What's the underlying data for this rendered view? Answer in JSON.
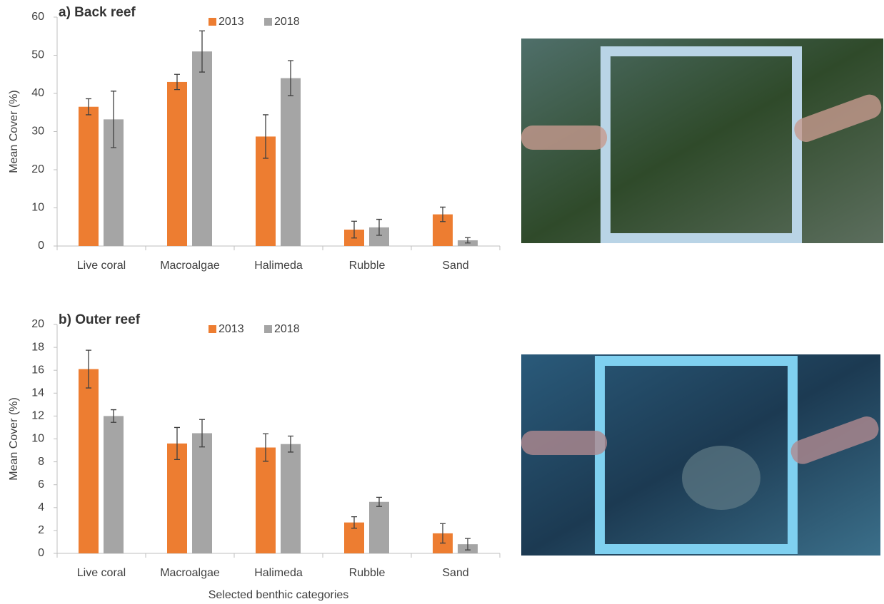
{
  "chart_data": [
    {
      "type": "bar",
      "title": "a) Back reef",
      "y_label": "Mean Cover (%)",
      "categories": [
        "Live coral",
        "Macroalgae",
        "Halimeda",
        "Rubble",
        "Sand"
      ],
      "series": [
        {
          "name": "2013",
          "color": "#ed7d31",
          "values": [
            36.5,
            43,
            28.7,
            4.3,
            8.3
          ],
          "errors": [
            2.1,
            2,
            5.7,
            2.2,
            1.9
          ]
        },
        {
          "name": "2018",
          "color": "#a5a5a5",
          "values": [
            33.2,
            51,
            44,
            4.9,
            1.5
          ],
          "errors": [
            7.4,
            5.4,
            4.6,
            2.1,
            0.7
          ]
        }
      ],
      "ylim": [
        0,
        60
      ],
      "yticks": [
        0,
        10,
        20,
        30,
        40,
        50,
        60
      ],
      "grid": false
    },
    {
      "type": "bar",
      "title": "b) Outer reef",
      "y_label": "Mean Cover (%)",
      "x_label": "Selected benthic categories",
      "categories": [
        "Live coral",
        "Macroalgae",
        "Halimeda",
        "Rubble",
        "Sand"
      ],
      "series": [
        {
          "name": "2013",
          "color": "#ed7d31",
          "values": [
            16.1,
            9.6,
            9.25,
            2.7,
            1.75
          ],
          "errors": [
            1.65,
            1.4,
            1.2,
            0.5,
            0.85
          ]
        },
        {
          "name": "2018",
          "color": "#a5a5a5",
          "values": [
            12,
            10.5,
            9.55,
            4.5,
            0.8
          ],
          "errors": [
            0.55,
            1.2,
            0.7,
            0.4,
            0.5
          ]
        }
      ],
      "ylim": [
        0,
        20
      ],
      "yticks": [
        0,
        2,
        4,
        6,
        8,
        10,
        12,
        14,
        16,
        18,
        20
      ],
      "grid": false
    }
  ]
}
